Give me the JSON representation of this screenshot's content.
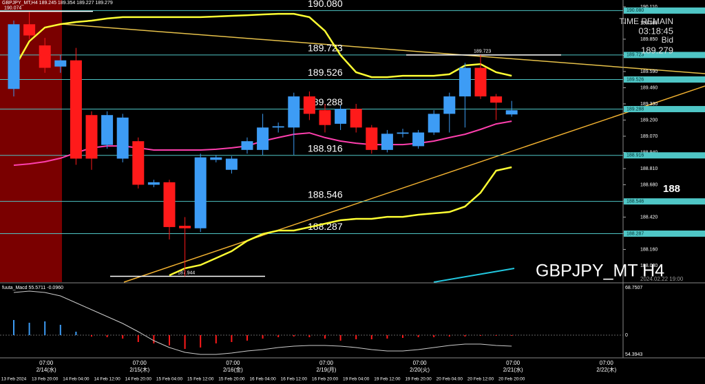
{
  "chart_data": {
    "type": "candlestick",
    "title": "GBPJPY_MT H4",
    "symbol_info": "GBPJPY_MT,H4 189.245 189.354 189.227 189.279",
    "timestamp": "2024.02.22 19:00",
    "time_remain_label": "TIME REMAIN",
    "time_remain": "03:18:45",
    "bid_label": "Bid",
    "bid": 189.279,
    "cursor_price": "188",
    "categories": [
      "13 Feb 2024",
      null,
      "13 Feb 20:00",
      null,
      "14 Feb 04:00",
      null,
      "14 Feb 12:00",
      null,
      "14 Feb 20:00",
      null,
      "15 Feb 04:00",
      null,
      "15 Feb 12:00",
      null,
      "15 Feb 20:00",
      null,
      "16 Feb 04:00",
      null,
      "16 Feb 12:00",
      null,
      "16 Feb 20:00",
      null,
      "19 Feb 04:00",
      null,
      "19 Feb 12:00",
      null,
      "19 Feb 20:00",
      null,
      "20 Feb 04:00",
      null,
      "20 Feb 12:00",
      null,
      "20 Feb 20:00"
    ],
    "session_labels": [
      {
        "time": "07:00",
        "date": "2/14(水)"
      },
      {
        "time": "07:00",
        "date": "2/15(木)"
      },
      {
        "time": "07:00",
        "date": "2/16(金)"
      },
      {
        "time": "07:00",
        "date": "2/19(月)"
      },
      {
        "time": "07:00",
        "date": "2/20(火)"
      },
      {
        "time": "07:00",
        "date": "2/21(水)"
      },
      {
        "time": "07:00",
        "date": "2/22(木)"
      }
    ],
    "open": [
      189.45,
      189.97,
      189.8,
      189.63,
      189.68,
      189.24,
      189.0,
      188.89,
      189.03,
      188.68,
      188.7,
      188.35,
      188.33,
      188.88,
      188.8,
      188.96,
      188.96,
      189.14,
      189.14,
      189.39,
      189.28,
      189.17,
      189.29,
      189.14,
      188.96,
      189.09,
      188.99,
      189.1,
      189.25,
      189.39,
      189.62,
      189.39,
      189.245
    ],
    "close": [
      189.97,
      189.88,
      189.62,
      189.68,
      188.89,
      188.89,
      189.24,
      189.22,
      188.68,
      188.7,
      188.34,
      188.33,
      188.9,
      188.9,
      188.89,
      189.03,
      189.14,
      189.15,
      189.39,
      189.25,
      189.16,
      189.29,
      189.14,
      188.96,
      189.09,
      189.1,
      189.1,
      189.25,
      189.39,
      189.62,
      189.39,
      189.34,
      189.279
    ],
    "high": [
      190.0,
      190.07,
      189.86,
      189.72,
      189.78,
      189.27,
      189.27,
      189.25,
      189.06,
      188.72,
      188.72,
      188.42,
      188.93,
      188.92,
      188.91,
      189.06,
      189.25,
      189.18,
      189.42,
      189.43,
      189.33,
      189.32,
      189.33,
      189.16,
      189.12,
      189.13,
      189.12,
      189.28,
      189.42,
      189.66,
      189.723,
      189.41,
      189.354
    ],
    "low": [
      189.39,
      189.85,
      189.58,
      189.58,
      188.84,
      188.8,
      188.97,
      188.86,
      188.65,
      188.66,
      188.24,
      187.944,
      188.3,
      188.86,
      188.77,
      188.93,
      188.92,
      189.1,
      188.92,
      189.2,
      189.1,
      189.12,
      189.1,
      188.93,
      188.94,
      189.06,
      188.97,
      189.08,
      189.1,
      189.14,
      189.37,
      189.2,
      189.227
    ],
    "up_color": "#3d9cf5",
    "down_color": "#ff1a1a",
    "series": [
      {
        "color": "#ffff33",
        "values": [
          189.612,
          189.833,
          189.944,
          189.971,
          189.988,
          189.999,
          190.016,
          190.027,
          190.027,
          190.027,
          190.027,
          190.027,
          190.027,
          190.032,
          190.038,
          190.043,
          190.049,
          190.054,
          190.054,
          190.027,
          189.916,
          189.722,
          189.584,
          189.545,
          189.545,
          189.556,
          189.556,
          189.556,
          189.568,
          189.639,
          189.65,
          189.584,
          189.556
        ]
      },
      {
        "color": "#ff3fae",
        "values": [
          188.837,
          188.848,
          188.865,
          188.893,
          188.937,
          188.976,
          188.992,
          188.992,
          188.976,
          188.959,
          188.959,
          188.959,
          188.959,
          188.965,
          188.976,
          188.992,
          189.031,
          189.059,
          189.086,
          189.097,
          189.059,
          189.031,
          189.014,
          189.003,
          189.003,
          189.003,
          189.014,
          189.031,
          189.059,
          189.086,
          189.125,
          189.169,
          189.191
        ]
      },
      {
        "color": "#ffff33",
        "values": [
          null,
          null,
          null,
          null,
          null,
          null,
          null,
          null,
          null,
          null,
          187.952,
          188.008,
          188.035,
          188.09,
          188.146,
          188.229,
          188.284,
          188.312,
          188.312,
          188.339,
          188.367,
          188.395,
          188.406,
          188.406,
          188.422,
          188.422,
          188.439,
          188.45,
          188.461,
          188.505,
          188.616,
          188.793,
          188.821
        ]
      }
    ],
    "levels": {
      "color": "#4fc6c6",
      "values": [
        190.08,
        189.723,
        189.526,
        189.288,
        188.916,
        188.546,
        188.287
      ],
      "value_labels": [
        "190.080",
        "189.723",
        "189.526",
        "189.288",
        "188.916",
        "188.546",
        "188.287"
      ]
    },
    "annotations": [
      {
        "value": 190.074,
        "label": "190.074"
      },
      {
        "value": 189.723,
        "label": "189.723"
      },
      {
        "value": 187.944,
        "label": "187.944"
      }
    ],
    "ylim": [
      187.897,
      190.165
    ],
    "yticks": [
      {
        "value": 190.11,
        "label": "190.110"
      },
      {
        "value": 189.98,
        "label": "189.980"
      },
      {
        "value": 189.85,
        "label": "189.850"
      },
      {
        "value": 189.72,
        "label": "189.720"
      },
      {
        "value": 189.59,
        "label": "189.590"
      },
      {
        "value": 189.46,
        "label": "189.460"
      },
      {
        "value": 189.33,
        "label": "189.330"
      },
      {
        "value": 189.2,
        "label": "189.200"
      },
      {
        "value": 189.07,
        "label": "189.070"
      },
      {
        "value": 188.94,
        "label": "188.940"
      },
      {
        "value": 188.81,
        "label": "188.810"
      },
      {
        "value": 188.68,
        "label": "188.680"
      },
      {
        "value": 188.55,
        "label": "188.550"
      },
      {
        "value": 188.42,
        "label": "188.420"
      },
      {
        "value": 188.29,
        "label": "188.290"
      },
      {
        "value": 188.16,
        "label": "188.160"
      },
      {
        "value": 188.03,
        "label": "188.030"
      }
    ],
    "macd": {
      "title": "fuuta_Macd 55.5711 -0.0960",
      "scale_labels": [
        "68.7507",
        "0",
        "54.3943"
      ],
      "ylim": [
        -0.33,
        0.74
      ],
      "histogram": [
        0.22,
        0.18,
        0.2,
        0.15,
        0.05,
        -0.02,
        -0.03,
        -0.05,
        -0.1,
        -0.12,
        -0.15,
        -0.2,
        -0.18,
        -0.12,
        -0.1,
        -0.08,
        -0.05,
        -0.03,
        -0.02,
        -0.03,
        -0.05,
        -0.08,
        -0.06,
        -0.06,
        -0.05,
        -0.04,
        -0.03,
        -0.03,
        -0.02,
        -0.02,
        -0.01,
        -0.01,
        -0.01
      ],
      "line_color": "#cccccc",
      "line": [
        0.62,
        0.64,
        0.62,
        0.57,
        0.47,
        0.37,
        0.27,
        0.17,
        0.05,
        -0.08,
        -0.18,
        -0.25,
        -0.28,
        -0.28,
        -0.26,
        -0.23,
        -0.21,
        -0.18,
        -0.16,
        -0.15,
        -0.15,
        -0.16,
        -0.18,
        -0.21,
        -0.23,
        -0.23,
        -0.21,
        -0.18,
        -0.15,
        -0.13,
        -0.13,
        -0.15,
        -0.16
      ]
    }
  }
}
